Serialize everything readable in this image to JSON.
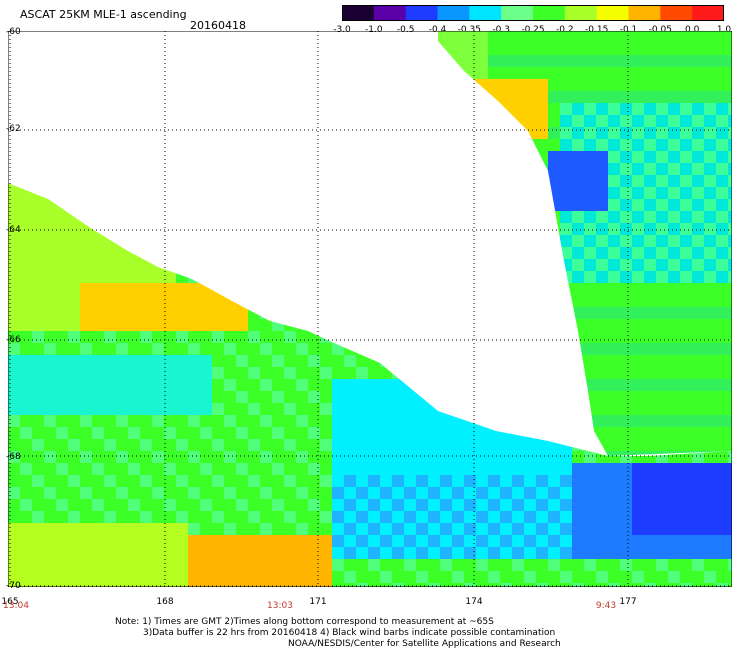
{
  "header": {
    "title": "ASCAT 25KM MLE-1 ascending",
    "date": "20160418"
  },
  "colorbar": {
    "ticks": [
      "-3.0",
      "-1.0",
      "-0.5",
      "-0.4",
      "-0.35",
      "-0.3",
      "-0.25",
      "-0.2",
      "-0.15",
      "-0.1",
      "-0.05",
      "0.0",
      "1.0"
    ],
    "colors": [
      "#1a0033",
      "#5b00a8",
      "#1e3cff",
      "#0a96ff",
      "#00e5ff",
      "#6cff8a",
      "#3cff28",
      "#a8ff2a",
      "#f5ff00",
      "#ffb400",
      "#ff4a00",
      "#ff1a1a"
    ]
  },
  "map": {
    "lat_labels": [
      "-60",
      "-62",
      "-64",
      "-66",
      "-68",
      "-70"
    ],
    "lon_labels": [
      "165",
      "168",
      "171",
      "174",
      "177"
    ],
    "time_labels": [
      "13:04",
      "13:03",
      "9:43"
    ]
  },
  "footer": {
    "note_line1": "Note: 1) Times are GMT 2)Times along bottom correspond to measurement at ~65S",
    "note_line2": "3)Data buffer is 22 hrs from 20160418 4) Black wind barbs indicate possible contamination",
    "credit": "NOAA/NESDIS/Center for Satellite Applications and Research"
  }
}
